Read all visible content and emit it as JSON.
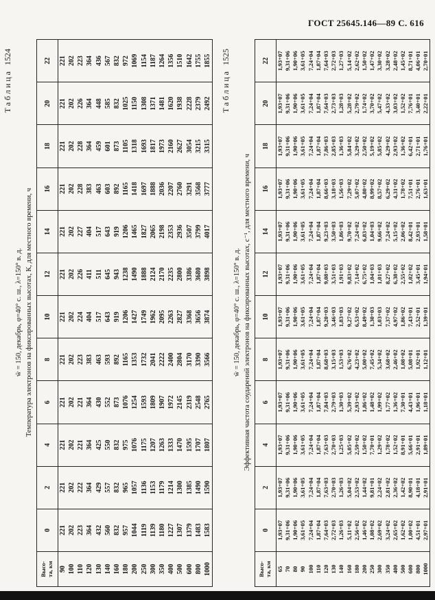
{
  "page": {
    "header": "ГОСТ 25645.146—89 С. 616"
  },
  "tables": [
    {
      "label_word": "Таблица",
      "label_number": "1524",
      "conditions": "w̄ = 150, декабрь, φ=40° с. ш., λ=150° в. д.",
      "subtitle": "Температура электронов на фиксированных высотах, К, для местного времени, ч",
      "row_header_lines": [
        "Высо-",
        "та, км"
      ],
      "times": [
        "0",
        "2",
        "4",
        "6",
        "8",
        "10",
        "12",
        "14",
        "16",
        "18",
        "20",
        "22"
      ],
      "altitudes": [
        "90",
        "100",
        "110",
        "120",
        "130",
        "140",
        "160",
        "180",
        "200",
        "250",
        "300",
        "350",
        "400",
        "500",
        "600",
        "800",
        "1000"
      ],
      "series": [
        {
          "time": "0",
          "values": [
            "221",
            "202",
            "223",
            "364",
            "432",
            "560",
            "832",
            "957",
            "1044",
            "1119",
            "1139",
            "1180",
            "1227",
            "1307",
            "1379",
            "1483",
            "1583"
          ]
        },
        {
          "time": "2",
          "values": [
            "221",
            "202",
            "222",
            "364",
            "429",
            "557",
            "832",
            "965",
            "1057",
            "1136",
            "1153",
            "1179",
            "1214",
            "1300",
            "1385",
            "1490",
            "1590"
          ]
        },
        {
          "time": "4",
          "values": [
            "221",
            "202",
            "221",
            "364",
            "425",
            "550",
            "832",
            "975",
            "1076",
            "1175",
            "1207",
            "1263",
            "1333",
            "1470",
            "1595",
            "1707",
            "1807"
          ]
        },
        {
          "time": "6",
          "values": [
            "221",
            "202",
            "221",
            "364",
            "430",
            "552",
            "873",
            "1076",
            "1254",
            "1593",
            "1809",
            "1907",
            "1972",
            "2145",
            "2319",
            "2548",
            "2765"
          ]
        },
        {
          "time": "8",
          "values": [
            "221",
            "202",
            "223",
            "383",
            "463",
            "593",
            "892",
            "1165",
            "1353",
            "1732",
            "2041",
            "2222",
            "2400",
            "2804",
            "3170",
            "3390",
            "3566"
          ]
        },
        {
          "time": "10",
          "values": [
            "221",
            "202",
            "224",
            "404",
            "517",
            "643",
            "919",
            "1206",
            "1427",
            "1749",
            "1962",
            "2095",
            "2263",
            "2827",
            "3368",
            "3656",
            "3874"
          ]
        },
        {
          "time": "12",
          "values": [
            "221",
            "202",
            "226",
            "411",
            "511",
            "645",
            "943",
            "1238",
            "1490",
            "1888",
            "2124",
            "2170",
            "2235",
            "2800",
            "3386",
            "3680",
            "3898"
          ]
        },
        {
          "time": "14",
          "values": [
            "221",
            "202",
            "227",
            "404",
            "517",
            "643",
            "919",
            "1206",
            "1465",
            "1827",
            "2065",
            "2198",
            "2353",
            "2936",
            "3507",
            "3799",
            "4017"
          ]
        },
        {
          "time": "16",
          "values": [
            "221",
            "202",
            "228",
            "383",
            "463",
            "603",
            "892",
            "1165",
            "1418",
            "1697",
            "1888",
            "2036",
            "2207",
            "2760",
            "3291",
            "3568",
            "3777"
          ]
        },
        {
          "time": "18",
          "values": [
            "221",
            "202",
            "228",
            "364",
            "459",
            "601",
            "873",
            "1105",
            "1318",
            "1693",
            "1817",
            "1973",
            "2160",
            "2627",
            "3054",
            "3215",
            "3315"
          ]
        },
        {
          "time": "20",
          "values": [
            "221",
            "202",
            "226",
            "364",
            "448",
            "585",
            "832",
            "1025",
            "1150",
            "1308",
            "1371",
            "1481",
            "1620",
            "1938",
            "2228",
            "2379",
            "2492"
          ]
        },
        {
          "time": "22",
          "values": [
            "221",
            "202",
            "223",
            "364",
            "436",
            "567",
            "832",
            "972",
            "1069",
            "1154",
            "1187",
            "1264",
            "1356",
            "1510",
            "1642",
            "1755",
            "1855"
          ]
        }
      ]
    },
    {
      "label_word": "Таблица",
      "label_number": "1525",
      "conditions": "w̄ = 150, декабрь, φ=40° с. ш., λ=150° в. д.",
      "subtitle": "Эффективная частота соударений электронов на фиксированных высотах, с⁻¹, для местного времени, ч",
      "row_header_lines": [
        "Высо-",
        "та, км"
      ],
      "times": [
        "0",
        "2",
        "4",
        "6",
        "8",
        "10",
        "12",
        "14",
        "16",
        "18",
        "20",
        "22"
      ],
      "altitudes": [
        "65",
        "70",
        "80",
        "90",
        "100",
        "110",
        "120",
        "130",
        "140",
        "160",
        "180",
        "200",
        "250",
        "300",
        "350",
        "400",
        "500",
        "600",
        "800",
        "1000"
      ],
      "series": [
        {
          "time": "0",
          "values": [
            "1,93+07",
            "9,31+06",
            "1,90+06",
            "3,61+05",
            "7,24+04",
            "1,87+04",
            "7,64+03",
            "2,72+03",
            "1,26+03",
            "5,11+02",
            "2,56+02",
            "1,46+02",
            "1,08+02",
            "2,69+02",
            "3,24+02",
            "2,65+02",
            "1,62+02",
            "1,00+02",
            "4,51+01",
            "2,97+01"
          ]
        },
        {
          "time": "2",
          "values": [
            "1,93+07",
            "9,31+06",
            "1,90+06",
            "3,61+05",
            "7,24+04",
            "1,87+04",
            "7,63+03",
            "2,70+03",
            "1,26+03",
            "5,04+02",
            "2,53+02",
            "1,44+02",
            "9,81+01",
            "2,24+02",
            "2,81+02",
            "2,36+02",
            "1,42+02",
            "8,90+01",
            "4,18+01",
            "2,91+01"
          ]
        },
        {
          "time": "4",
          "values": [
            "1,93+07",
            "9,31+06",
            "1,90+06",
            "3,61+05",
            "7,24+04",
            "1,87+04",
            "7,63+03",
            "2,70+03",
            "1,25+03",
            "5,05+02",
            "2,59+02",
            "1,50+02",
            "7,70+01",
            "1,29+02",
            "1,78+02",
            "1,52+02",
            "8,91+01",
            "5,66+01",
            "2,91+01",
            "1,89+01"
          ]
        },
        {
          "time": "6",
          "values": [
            "1,93+07",
            "9,31+06",
            "1,90+06",
            "3,61+05",
            "7,24+04",
            "1,87+04",
            "7,84+03",
            "2,79+03",
            "1,30+03",
            "5,39+02",
            "2,93+02",
            "1,86+02",
            "1,48+02",
            "1,99+02",
            "1,77+02",
            "1,36+02",
            "7,30+01",
            "4,43+01",
            "1,96+01",
            "1,18+01"
          ]
        },
        {
          "time": "8",
          "values": [
            "1,93+07",
            "9,31+06",
            "1,90+06",
            "3,61+05",
            "7,24+04",
            "1,87+04",
            "8,68+03",
            "3,15+03",
            "1,53+03",
            "6,76+02",
            "4,23+02",
            "5,00+02",
            "7,45+02",
            "5,34+02",
            "3,68+02",
            "2,46+02",
            "1,08+02",
            "5,08+01",
            "1,92+01",
            "1,12+01"
          ]
        },
        {
          "time": "10",
          "values": [
            "1,93+07",
            "9,31+06",
            "1,90+06",
            "3,61+05",
            "7,24+04",
            "1,87+04",
            "9,20+03",
            "3,46+03",
            "1,83+03",
            "9,27+02",
            "6,53+02",
            "8,49+02",
            "1,30+03",
            "1,03+03",
            "7,37+02",
            "4,97+02",
            "1,86+02",
            "7,43+01",
            "2,52+01",
            "1,39+01"
          ]
        },
        {
          "time": "12",
          "values": [
            "1,93+07",
            "9,31+06",
            "1,90+06",
            "3,61+05",
            "7,24+04",
            "1,87+04",
            "9,08+03",
            "3,51+03",
            "1,91+03",
            "9,83+02",
            "7,14+02",
            "6,75+02",
            "1,04+03",
            "1,01+03",
            "8,27+02",
            "6,38+02",
            "2,55+02",
            "1,02+02",
            "3,45+01",
            "1,94+01"
          ]
        },
        {
          "time": "14",
          "values": [
            "1,93+07",
            "9,31+06",
            "1,90+06",
            "3,61+05",
            "7,24+04",
            "1,87+04",
            "9,23+03",
            "3,50+03",
            "1,86+03",
            "9,70+02",
            "7,24+02",
            "6,83+02",
            "1,04+03",
            "9,66+02",
            "7,24+02",
            "5,15+02",
            "2,06+02",
            "8,42+01",
            "2,93+01",
            "1,58+01"
          ]
        },
        {
          "time": "16",
          "values": [
            "1,93+07",
            "9,31+06",
            "1,90+06",
            "3,61+05",
            "7,24+04",
            "1,87+04",
            "8,66+03",
            "3,18+03",
            "1,56+03",
            "7,29+02",
            "5,07+02",
            "4,80+02",
            "8,99+02",
            "8,57+02",
            "6,29+02",
            "4,31+02",
            "1,78+02",
            "7,51+01",
            "2,76+01",
            "1,63+01"
          ]
        },
        {
          "time": "18",
          "values": [
            "1,93+07",
            "9,31+06",
            "1,90+06",
            "3,61+05",
            "7,24+04",
            "1,87+04",
            "7,86+03",
            "2,85+03",
            "1,36+03",
            "5,84+02",
            "3,29+02",
            "2,50+02",
            "5,19+02",
            "5,85+02",
            "4,29+02",
            "2,93+02",
            "1,36+02",
            "6,42+01",
            "2,71+01",
            "1,76+01"
          ]
        },
        {
          "time": "20",
          "values": [
            "1,93+07",
            "9,31+06",
            "1,90+06",
            "3,61+05",
            "7,24+04",
            "1,87+04",
            "7,64+03",
            "2,73+03",
            "1,28+03",
            "5,28+02",
            "2,79+02",
            "1,74+02",
            "3,70+02",
            "5,47+02",
            "4,33+02",
            "3,03+02",
            "1,52+02",
            "7,76+01",
            "3,40+01",
            "2,22+01"
          ]
        },
        {
          "time": "22",
          "values": [
            "1,93+07",
            "9,31+06",
            "1,90+06",
            "3,61+05",
            "7,24+04",
            "1,87+04",
            "7,64+03",
            "2,72+03",
            "1,27+03",
            "5,14+02",
            "2,62+02",
            "1,50+02",
            "1,47+02",
            "3,30+02",
            "3,28+02",
            "2,48+02",
            "1,45+02",
            "8,71+01",
            "4,06+01",
            "2,70+01"
          ]
        }
      ]
    }
  ]
}
